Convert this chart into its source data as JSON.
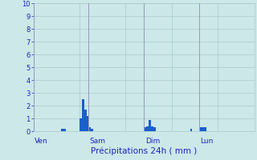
{
  "ylabel_values": [
    0,
    1,
    2,
    3,
    4,
    5,
    6,
    7,
    8,
    9,
    10
  ],
  "ylim": [
    0,
    10
  ],
  "background_color": "#cce8e8",
  "bar_color": "#1a5fcc",
  "grid_color": "#aacaca",
  "day_line_color": "#9999bb",
  "day_labels": [
    "Ven",
    "Sam",
    "Dim",
    "Lun"
  ],
  "day_positions": [
    0,
    24,
    48,
    72
  ],
  "total_hours": 96,
  "xlabel": "Précipitations 24h ( mm )",
  "tick_label_color": "#2222bb",
  "bar_values": [
    0,
    0,
    0,
    0,
    0,
    0,
    0,
    0,
    0,
    0,
    0,
    0,
    0.2,
    0.2,
    0,
    0,
    0,
    0,
    0,
    0,
    1.0,
    2.5,
    1.7,
    1.2,
    0.3,
    0.2,
    0,
    0,
    0,
    0,
    0,
    0,
    0,
    0,
    0,
    0,
    0,
    0,
    0,
    0,
    0,
    0,
    0,
    0,
    0,
    0,
    0,
    0,
    0.3,
    0.4,
    0.9,
    0.4,
    0.3,
    0,
    0,
    0,
    0,
    0,
    0,
    0,
    0,
    0,
    0,
    0,
    0,
    0,
    0,
    0,
    0.2,
    0,
    0,
    0,
    0.3,
    0.3,
    0.3,
    0,
    0,
    0,
    0,
    0,
    0,
    0,
    0,
    0,
    0,
    0,
    0,
    0,
    0,
    0,
    0,
    0,
    0,
    0,
    0,
    0
  ],
  "figsize": [
    3.2,
    2.0
  ],
  "dpi": 100
}
